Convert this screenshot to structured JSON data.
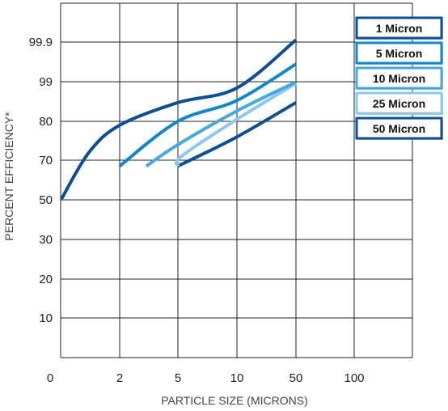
{
  "chart_data": {
    "type": "line",
    "title": "",
    "xlabel": "PARTICLE SIZE (MICRONS)",
    "ylabel": "PERCENT EFFICIENCY*",
    "x_ticks": [
      "0",
      "2",
      "5",
      "10",
      "50",
      "100"
    ],
    "y_ticks": [
      "10",
      "20",
      "30",
      "50",
      "70",
      "80",
      "99",
      "99.9"
    ],
    "grid": true,
    "legend_position": "right",
    "series": [
      {
        "name": "1 Micron",
        "color": "#0d4f92",
        "width": 4,
        "points": [
          [
            0.1,
            50.4
          ],
          [
            1,
            72
          ],
          [
            2,
            79
          ],
          [
            5,
            89
          ],
          [
            10,
            96
          ],
          [
            50,
            99.95
          ]
        ]
      },
      {
        "name": "5 Micron",
        "color": "#1287c9",
        "width": 4,
        "points": [
          [
            2,
            67
          ],
          [
            5,
            80
          ],
          [
            10,
            90
          ],
          [
            50,
            99.4
          ]
        ]
      },
      {
        "name": "10 Micron",
        "color": "#45a9de",
        "width": 4,
        "points": [
          [
            3,
            67
          ],
          [
            5,
            74
          ],
          [
            10,
            85
          ],
          [
            50,
            98.8
          ]
        ]
      },
      {
        "name": "25 Micron",
        "color": "#8ec8ec",
        "width": 4,
        "points": [
          [
            5,
            67
          ],
          [
            5.3,
            71
          ],
          [
            10,
            81
          ],
          [
            50,
            98.2
          ]
        ]
      },
      {
        "name": "50 Micron",
        "color": "#0d4f92",
        "width": 4,
        "points": [
          [
            5,
            67
          ],
          [
            10,
            76
          ],
          [
            50,
            89
          ]
        ]
      }
    ]
  }
}
